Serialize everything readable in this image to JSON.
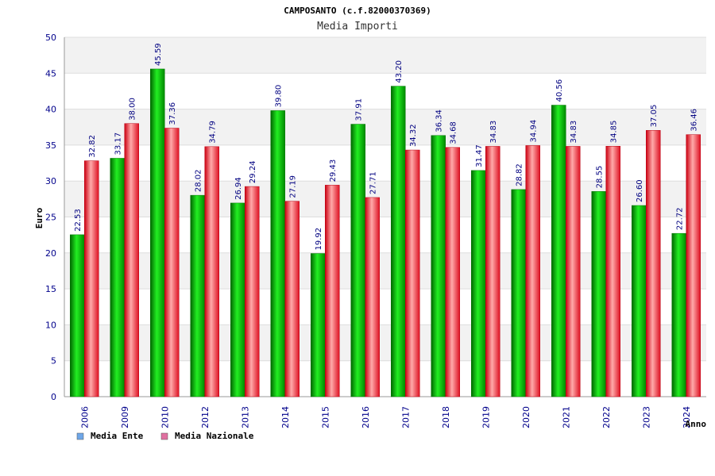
{
  "chart_data": {
    "type": "bar",
    "title": "CAMPOSANTO (c.f.82000370369)",
    "subtitle": "Media Importi",
    "xlabel": "Anno",
    "ylabel": "Euro",
    "ylim": [
      0,
      50
    ],
    "yticks": [
      0,
      5,
      10,
      15,
      20,
      25,
      30,
      35,
      40,
      45,
      50
    ],
    "grid": true,
    "legend_position": "bottom-left",
    "categories": [
      "2006",
      "2009",
      "2010",
      "2012",
      "2013",
      "2014",
      "2015",
      "2016",
      "2017",
      "2018",
      "2019",
      "2020",
      "2021",
      "2022",
      "2023",
      "2024"
    ],
    "series": [
      {
        "name": "Media Ente",
        "color": "#00bb00",
        "legend_color": "#6ea6e8",
        "values": [
          22.53,
          33.17,
          45.59,
          28.02,
          26.94,
          39.8,
          19.92,
          37.91,
          43.2,
          36.34,
          31.47,
          28.82,
          40.56,
          28.55,
          26.6,
          22.72
        ],
        "labels": [
          "22.53",
          "33.17",
          "45.59",
          "28.02",
          "26.94",
          "39.80",
          "19.92",
          "37.91",
          "43.20",
          "36.34",
          "31.47",
          "28.82",
          "40.56",
          "28.55",
          "26.60",
          "22.72"
        ]
      },
      {
        "name": "Media Nazionale",
        "color": "#ee2233",
        "legend_color": "#e070a0",
        "values": [
          32.82,
          38.0,
          37.36,
          34.79,
          29.24,
          27.19,
          29.43,
          27.71,
          34.32,
          34.68,
          34.83,
          34.94,
          34.83,
          34.85,
          37.05,
          36.46
        ],
        "labels": [
          "32.82",
          "38.00",
          "37.36",
          "34.79",
          "29.24",
          "27.19",
          "29.43",
          "27.71",
          "34.32",
          "34.68",
          "34.83",
          "34.94",
          "34.83",
          "34.85",
          "37.05",
          "36.46"
        ]
      }
    ]
  }
}
